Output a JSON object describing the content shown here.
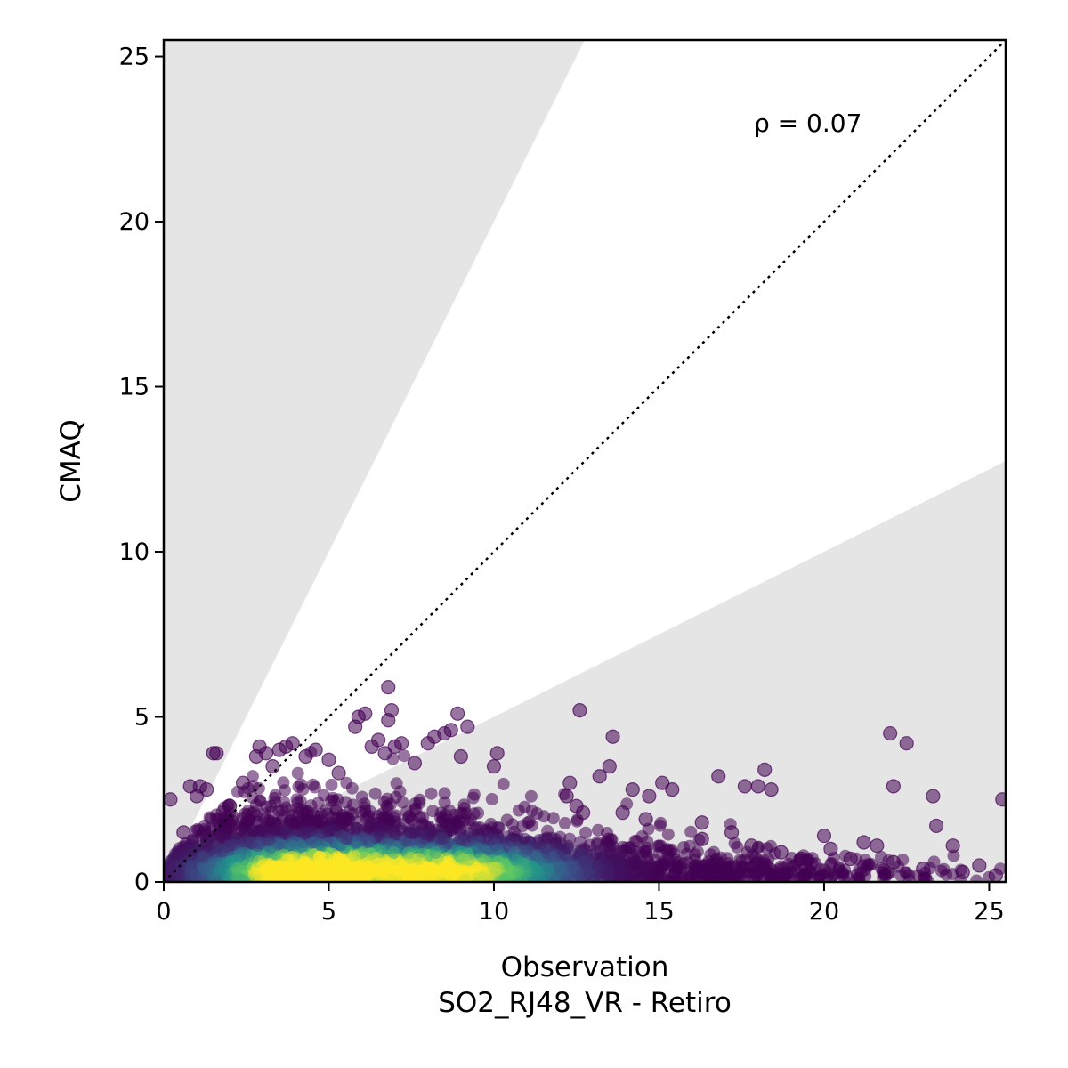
{
  "chart_data": {
    "type": "scatter",
    "title": "",
    "xlabel": "Observation",
    "xlabel_sub": "SO2_RJ48_VR - Retiro",
    "ylabel": "CMAQ",
    "xlim": [
      0,
      25.5
    ],
    "ylim": [
      0,
      25.5
    ],
    "x_ticks": [
      "0",
      "5",
      "10",
      "15",
      "20",
      "25"
    ],
    "y_ticks": [
      "0",
      "5",
      "10",
      "15",
      "20",
      "25"
    ],
    "annotation": "ρ = 0.07",
    "grid": false,
    "identity_line": "1:1 dotted",
    "shaded_band": "factor-of-2 envelope (y > 2x and y < 0.5x shaded gray)",
    "color_scale": "viridis (point density)",
    "colors": {
      "band": "#e5e5e5",
      "low_density": "#440154",
      "mid_density": "#21918c",
      "high_density": "#fde725"
    },
    "points": [
      {
        "x": 0.2,
        "y": 2.5
      },
      {
        "x": 0.6,
        "y": 1.5
      },
      {
        "x": 0.8,
        "y": 2.9
      },
      {
        "x": 1.0,
        "y": 2.6
      },
      {
        "x": 1.1,
        "y": 2.9
      },
      {
        "x": 1.3,
        "y": 2.8
      },
      {
        "x": 1.5,
        "y": 3.9
      },
      {
        "x": 1.6,
        "y": 3.9
      },
      {
        "x": 2.0,
        "y": 2.3
      },
      {
        "x": 2.4,
        "y": 3.0
      },
      {
        "x": 2.8,
        "y": 3.8
      },
      {
        "x": 2.9,
        "y": 4.1
      },
      {
        "x": 3.1,
        "y": 3.9
      },
      {
        "x": 3.3,
        "y": 3.5
      },
      {
        "x": 3.5,
        "y": 4.0
      },
      {
        "x": 3.7,
        "y": 4.1
      },
      {
        "x": 3.9,
        "y": 4.2
      },
      {
        "x": 4.3,
        "y": 3.8
      },
      {
        "x": 4.6,
        "y": 4.0
      },
      {
        "x": 5.0,
        "y": 3.7
      },
      {
        "x": 5.3,
        "y": 3.3
      },
      {
        "x": 5.8,
        "y": 4.7
      },
      {
        "x": 5.9,
        "y": 5.0
      },
      {
        "x": 6.1,
        "y": 5.1
      },
      {
        "x": 6.3,
        "y": 4.1
      },
      {
        "x": 6.5,
        "y": 4.3
      },
      {
        "x": 6.8,
        "y": 4.9
      },
      {
        "x": 6.9,
        "y": 5.2
      },
      {
        "x": 6.8,
        "y": 5.9
      },
      {
        "x": 7.0,
        "y": 4.1
      },
      {
        "x": 7.2,
        "y": 4.2
      },
      {
        "x": 6.7,
        "y": 3.9
      },
      {
        "x": 7.6,
        "y": 3.6
      },
      {
        "x": 8.0,
        "y": 4.2
      },
      {
        "x": 8.2,
        "y": 4.4
      },
      {
        "x": 8.5,
        "y": 4.5
      },
      {
        "x": 8.7,
        "y": 4.6
      },
      {
        "x": 8.9,
        "y": 5.1
      },
      {
        "x": 9.2,
        "y": 4.7
      },
      {
        "x": 9.0,
        "y": 3.8
      },
      {
        "x": 10.0,
        "y": 3.5
      },
      {
        "x": 10.1,
        "y": 3.9
      },
      {
        "x": 12.6,
        "y": 5.2
      },
      {
        "x": 13.6,
        "y": 4.4
      },
      {
        "x": 12.2,
        "y": 2.6
      },
      {
        "x": 12.3,
        "y": 3.0
      },
      {
        "x": 12.5,
        "y": 2.3
      },
      {
        "x": 12.7,
        "y": 2.1
      },
      {
        "x": 13.2,
        "y": 3.2
      },
      {
        "x": 13.5,
        "y": 3.5
      },
      {
        "x": 13.9,
        "y": 2.1
      },
      {
        "x": 14.2,
        "y": 2.8
      },
      {
        "x": 14.6,
        "y": 1.9
      },
      {
        "x": 14.7,
        "y": 2.6
      },
      {
        "x": 15.1,
        "y": 3.0
      },
      {
        "x": 15.4,
        "y": 2.8
      },
      {
        "x": 16.3,
        "y": 1.8
      },
      {
        "x": 16.3,
        "y": 1.3
      },
      {
        "x": 16.8,
        "y": 3.2
      },
      {
        "x": 17.2,
        "y": 1.5
      },
      {
        "x": 17.6,
        "y": 2.9
      },
      {
        "x": 18.0,
        "y": 2.9
      },
      {
        "x": 18.2,
        "y": 3.4
      },
      {
        "x": 18.4,
        "y": 2.8
      },
      {
        "x": 17.8,
        "y": 1.1
      },
      {
        "x": 18.7,
        "y": 0.9
      },
      {
        "x": 19.3,
        "y": 0.7
      },
      {
        "x": 20.0,
        "y": 1.4
      },
      {
        "x": 20.2,
        "y": 1.0
      },
      {
        "x": 20.8,
        "y": 0.7
      },
      {
        "x": 21.2,
        "y": 1.2
      },
      {
        "x": 21.6,
        "y": 1.1
      },
      {
        "x": 22.0,
        "y": 4.5
      },
      {
        "x": 22.1,
        "y": 2.9
      },
      {
        "x": 22.5,
        "y": 4.2
      },
      {
        "x": 22.1,
        "y": 0.6
      },
      {
        "x": 23.3,
        "y": 2.6
      },
      {
        "x": 23.4,
        "y": 1.7
      },
      {
        "x": 23.9,
        "y": 1.1
      },
      {
        "x": 23.0,
        "y": 0.4
      },
      {
        "x": 24.2,
        "y": 0.3
      },
      {
        "x": 24.7,
        "y": 0.5
      },
      {
        "x": 25.4,
        "y": 2.5
      },
      {
        "x": 25.2,
        "y": 0.2
      }
    ],
    "density_clusters": [
      {
        "x": 3.5,
        "y": 1.6,
        "sx": 2.0,
        "sy": 0.9,
        "n": 1300
      },
      {
        "x": 8.3,
        "y": 1.3,
        "sx": 1.8,
        "sy": 0.8,
        "n": 1000
      },
      {
        "x": 4.8,
        "y": 2.3,
        "sx": 1.3,
        "sy": 0.6,
        "n": 350
      },
      {
        "x": 12.5,
        "y": 0.8,
        "sx": 2.5,
        "sy": 0.5,
        "n": 450
      },
      {
        "x": 18.0,
        "y": 0.4,
        "sx": 3.0,
        "sy": 0.3,
        "n": 300
      },
      {
        "x": 0.8,
        "y": 0.6,
        "sx": 0.6,
        "sy": 0.5,
        "n": 150
      }
    ]
  }
}
